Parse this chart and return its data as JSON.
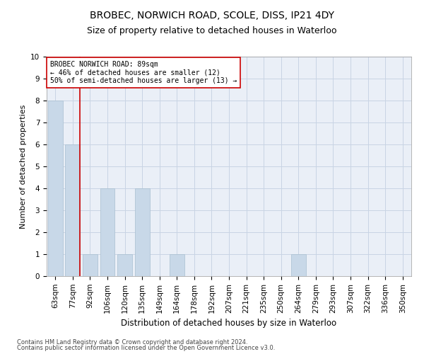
{
  "title1": "BROBEC, NORWICH ROAD, SCOLE, DISS, IP21 4DY",
  "title2": "Size of property relative to detached houses in Waterloo",
  "xlabel": "Distribution of detached houses by size in Waterloo",
  "ylabel": "Number of detached properties",
  "categories": [
    "63sqm",
    "77sqm",
    "92sqm",
    "106sqm",
    "120sqm",
    "135sqm",
    "149sqm",
    "164sqm",
    "178sqm",
    "192sqm",
    "207sqm",
    "221sqm",
    "235sqm",
    "250sqm",
    "264sqm",
    "279sqm",
    "293sqm",
    "307sqm",
    "322sqm",
    "336sqm",
    "350sqm"
  ],
  "values": [
    8,
    6,
    1,
    4,
    1,
    4,
    0,
    1,
    0,
    0,
    0,
    0,
    0,
    0,
    1,
    0,
    0,
    0,
    0,
    0,
    0
  ],
  "bar_color": "#c8d8e8",
  "bar_edge_color": "#a8bfd0",
  "vline_color": "#cc0000",
  "vline_x": 1.425,
  "annotation_line1": "BROBEC NORWICH ROAD: 89sqm",
  "annotation_line2": "← 46% of detached houses are smaller (12)",
  "annotation_line3": "50% of semi-detached houses are larger (13) →",
  "ylim": [
    0,
    10
  ],
  "yticks": [
    0,
    1,
    2,
    3,
    4,
    5,
    6,
    7,
    8,
    9,
    10
  ],
  "grid_color": "#c8d4e4",
  "background_color": "#eaeff7",
  "footer1": "Contains HM Land Registry data © Crown copyright and database right 2024.",
  "footer2": "Contains public sector information licensed under the Open Government Licence v3.0.",
  "title1_fontsize": 10,
  "title2_fontsize": 9,
  "xlabel_fontsize": 8.5,
  "ylabel_fontsize": 8,
  "tick_fontsize": 7.5,
  "annotation_fontsize": 7,
  "footer_fontsize": 6
}
